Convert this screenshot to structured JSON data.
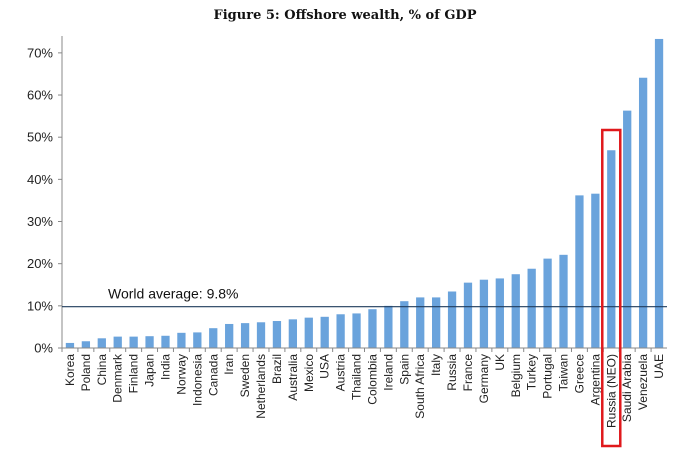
{
  "chart_data": {
    "type": "bar",
    "title": "Figure 5: Offshore wealth, % of GDP",
    "xlabel": "",
    "ylabel": "",
    "ylim": [
      0,
      74
    ],
    "yticks": [
      0,
      10,
      20,
      30,
      40,
      50,
      60,
      70
    ],
    "ytick_labels": [
      "0%",
      "10%",
      "20%",
      "30%",
      "40%",
      "50%",
      "60%",
      "70%"
    ],
    "categories": [
      "Korea",
      "Poland",
      "China",
      "Denmark",
      "Finland",
      "Japan",
      "India",
      "Norway",
      "Indonesia",
      "Canada",
      "Iran",
      "Sweden",
      "Netherlands",
      "Brazil",
      "Australia",
      "Mexico",
      "USA",
      "Austria",
      "Thailand",
      "Colombia",
      "Ireland",
      "Spain",
      "South Africa",
      "Italy",
      "Russia",
      "France",
      "Germany",
      "UK",
      "Belgium",
      "Turkey",
      "Portugal",
      "Taiwan",
      "Greece",
      "Argentina",
      "Russia (NEO)",
      "Saudi Arabia",
      "Venezuela",
      "UAE"
    ],
    "values": [
      1.2,
      1.6,
      2.3,
      2.7,
      2.7,
      2.8,
      2.9,
      3.6,
      3.7,
      4.7,
      5.7,
      5.9,
      6.1,
      6.4,
      6.8,
      7.2,
      7.4,
      8.0,
      8.2,
      9.2,
      10.0,
      11.1,
      12.0,
      12.0,
      13.4,
      15.5,
      16.2,
      16.5,
      17.5,
      18.8,
      21.2,
      22.1,
      36.2,
      36.6,
      46.9,
      56.3,
      64.1,
      73.3
    ],
    "bar_color": "#6aa3dc",
    "average_line": {
      "value": 9.8,
      "label": "World average: 9.8%",
      "color": "#1f3b5c"
    },
    "highlight": {
      "category": "Russia (NEO)",
      "color": "#e0191c"
    },
    "axis_color": "#888888"
  }
}
